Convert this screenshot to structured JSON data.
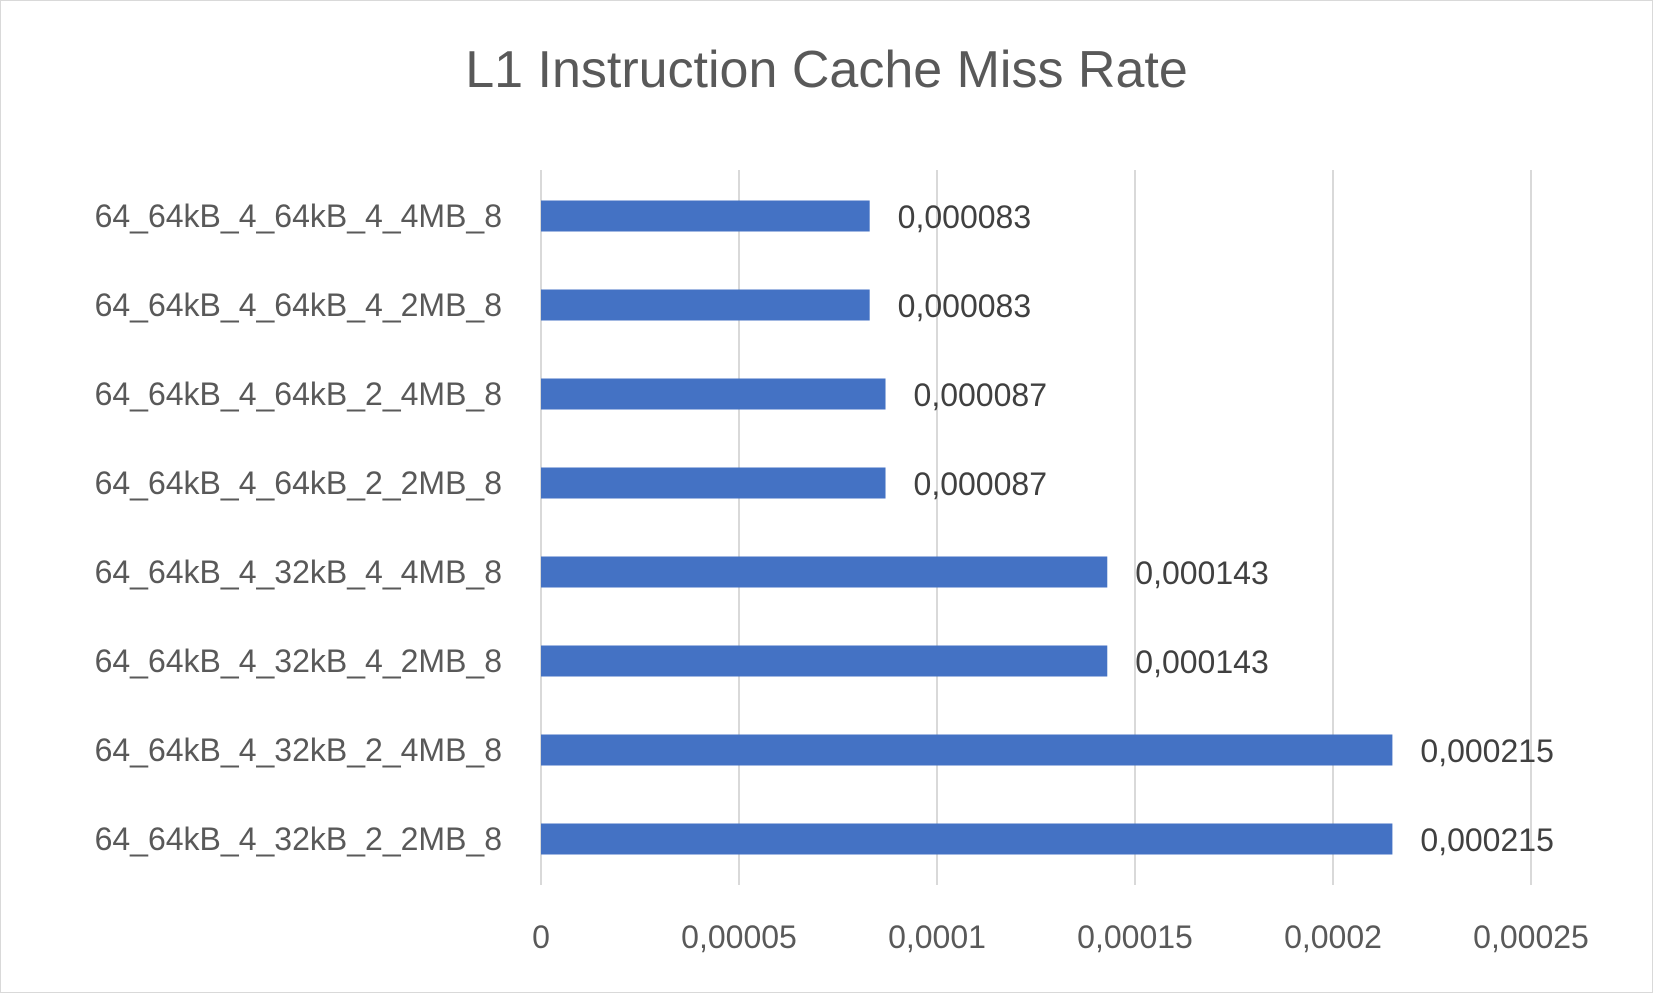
{
  "chart_data": {
    "type": "bar",
    "orientation": "horizontal",
    "title": "L1 Instruction Cache Miss Rate",
    "xlabel": "",
    "ylabel": "",
    "categories": [
      "64_64kB_4_64kB_4_4MB_8",
      "64_64kB_4_64kB_4_2MB_8",
      "64_64kB_4_64kB_2_4MB_8",
      "64_64kB_4_64kB_2_2MB_8",
      "64_64kB_4_32kB_4_4MB_8",
      "64_64kB_4_32kB_4_2MB_8",
      "64_64kB_4_32kB_2_4MB_8",
      "64_64kB_4_32kB_2_2MB_8"
    ],
    "values": [
      8.3e-05,
      8.3e-05,
      8.7e-05,
      8.7e-05,
      0.000143,
      0.000143,
      0.000215,
      0.000215
    ],
    "data_labels": [
      "0,000083",
      "0,000083",
      "0,000087",
      "0,000087",
      "0,000143",
      "0,000143",
      "0,000215",
      "0,000215"
    ],
    "xlim": [
      0,
      0.00025
    ],
    "xticks": [
      0,
      5e-05,
      0.0001,
      0.00015,
      0.0002,
      0.00025
    ],
    "xtick_labels": [
      "0",
      "0,00005",
      "0,0001",
      "0,00015",
      "0,0002",
      "0,00025"
    ],
    "grid": true,
    "legend": "none",
    "colors": {
      "bar": "#4472C4",
      "grid": "#d9d9d9",
      "text": "#595959",
      "data_label": "#404040"
    }
  }
}
